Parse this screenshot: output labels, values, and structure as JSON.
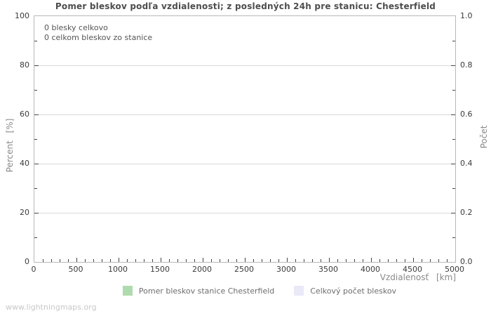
{
  "title": "Pomer bleskov podľa vzdialenosti; z posledných 24h pre stanicu: Chesterfield",
  "watermark": "www.lightningmaps.org",
  "annotations": [
    "0 blesky celkovo",
    "0 celkom bleskov zo stanice"
  ],
  "legend": [
    {
      "label": "Pomer bleskov stanice Chesterfield",
      "color": "#aedbae"
    },
    {
      "label": "Celkový počet bleskov",
      "color": "#e9e9f8"
    }
  ],
  "colors": {
    "background": "#ffffff",
    "plot_border": "#b8b8b8",
    "gridline": "#d9d9d9",
    "tick": "#444444",
    "tick_label": "#3a3a3a",
    "axis_title": "#8a8a8a",
    "title": "#4d4d4d",
    "annotation": "#555555",
    "legend_text": "#6e6e6e",
    "watermark": "#c8c8c8"
  },
  "chart_data": {
    "type": "line",
    "title": "Pomer bleskov podľa vzdialenosti; z posledných 24h pre stanicu: Chesterfield",
    "grid": "horizontal-major",
    "legend_position": "bottom-center",
    "x_axis": {
      "label": "Vzdialenosť [km]",
      "min": 0,
      "max": 5000,
      "major_tick_values": [
        0,
        500,
        1000,
        1500,
        2000,
        2500,
        3000,
        3500,
        4000,
        4500,
        5000
      ],
      "major_tick_labels": [
        "0",
        "500",
        "1000",
        "1500",
        "2000",
        "2500",
        "3000",
        "3500",
        "4000",
        "4500",
        "5000"
      ],
      "minor_tick_step": 100
    },
    "y_left_axis": {
      "label": "Percent [%]",
      "min": 0,
      "max": 100,
      "major_tick_values": [
        0,
        20,
        40,
        60,
        80,
        100
      ],
      "major_tick_labels": [
        "0",
        "20",
        "40",
        "60",
        "80",
        "100"
      ],
      "minor_tick_step": 10
    },
    "y_right_axis": {
      "label": "Počet",
      "min": 0,
      "max": 1,
      "major_tick_values": [
        0,
        0.2,
        0.4,
        0.6,
        0.8,
        1
      ],
      "major_tick_labels": [
        "0.0",
        "0.2",
        "0.4",
        "0.6",
        "0.8",
        "1.0"
      ],
      "minor_tick_step": 0.1
    },
    "series": [
      {
        "name": "Pomer bleskov stanice Chesterfield",
        "color": "#aedbae",
        "x": [],
        "y": []
      },
      {
        "name": "Celkový počet bleskov",
        "color": "#e9e9f8",
        "x": [],
        "y": []
      }
    ],
    "annotations": [
      "0 blesky celkovo",
      "0 celkom bleskov zo stanice"
    ]
  }
}
